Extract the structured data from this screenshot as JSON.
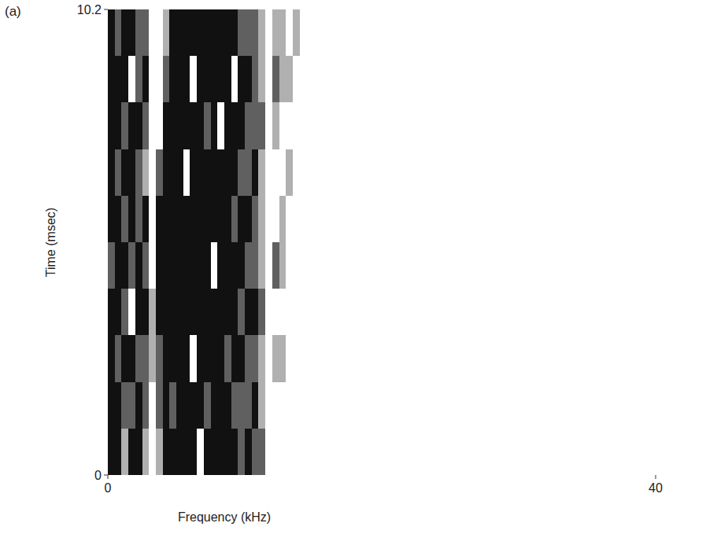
{
  "chart_data": {
    "type": "heatmap",
    "panel_label": "(a)",
    "x_label": "Frequency (kHz)",
    "y_label": "Time (msec)",
    "xlim": [
      0,
      40
    ],
    "ylim": [
      0,
      10.2
    ],
    "xticks": [
      0,
      40
    ],
    "yticks": [
      0,
      10.2
    ],
    "zlim": [
      0,
      3
    ],
    "freq_bins": [
      0,
      0.5,
      1,
      1.5,
      2,
      2.5,
      3,
      3.5,
      4,
      4.5,
      5,
      5.5,
      6,
      6.5,
      7,
      7.5,
      8,
      8.5,
      9,
      9.5,
      10,
      10.5,
      11,
      11.5,
      12,
      12.5,
      13,
      13.5,
      14,
      14.5,
      15
    ],
    "time_bins": [
      0,
      1.02,
      2.04,
      3.06,
      4.08,
      5.1,
      6.12,
      7.14,
      8.16,
      9.18,
      10.2
    ],
    "cells": [
      [
        3,
        3,
        1,
        3,
        3,
        1,
        0,
        1,
        3,
        3,
        3,
        3,
        3,
        0,
        3,
        3,
        3,
        3,
        3,
        2,
        3,
        2,
        2,
        0,
        0,
        0,
        0,
        0,
        0,
        0
      ],
      [
        3,
        3,
        2,
        2,
        3,
        2,
        0,
        2,
        3,
        2,
        3,
        3,
        3,
        3,
        2,
        3,
        3,
        3,
        2,
        2,
        2,
        3,
        1,
        0,
        0,
        0,
        0,
        0,
        0,
        0
      ],
      [
        3,
        2,
        3,
        3,
        2,
        2,
        1,
        2,
        3,
        3,
        3,
        3,
        0,
        3,
        3,
        3,
        3,
        2,
        3,
        3,
        2,
        2,
        1,
        0,
        1,
        1,
        0,
        0,
        0,
        0
      ],
      [
        3,
        3,
        2,
        0,
        3,
        3,
        1,
        3,
        3,
        3,
        3,
        3,
        3,
        3,
        3,
        3,
        3,
        3,
        3,
        2,
        3,
        3,
        2,
        0,
        0,
        0,
        0,
        0,
        0,
        0
      ],
      [
        2,
        3,
        3,
        2,
        3,
        2,
        0,
        3,
        3,
        3,
        3,
        3,
        3,
        3,
        3,
        0,
        3,
        3,
        3,
        3,
        2,
        2,
        1,
        0,
        2,
        1,
        0,
        0,
        0,
        0
      ],
      [
        3,
        3,
        2,
        3,
        2,
        3,
        0,
        3,
        3,
        3,
        3,
        3,
        3,
        3,
        3,
        3,
        3,
        3,
        2,
        3,
        3,
        2,
        1,
        0,
        0,
        1,
        0,
        0,
        0,
        0
      ],
      [
        3,
        2,
        3,
        3,
        2,
        1,
        0,
        2,
        3,
        3,
        3,
        0,
        3,
        3,
        3,
        3,
        3,
        3,
        3,
        2,
        2,
        3,
        1,
        0,
        0,
        0,
        1,
        0,
        0,
        0
      ],
      [
        3,
        3,
        2,
        3,
        3,
        2,
        0,
        0,
        3,
        3,
        3,
        3,
        3,
        3,
        2,
        3,
        0,
        3,
        3,
        3,
        2,
        2,
        2,
        0,
        1,
        0,
        0,
        0,
        0,
        0
      ],
      [
        3,
        3,
        3,
        0,
        2,
        3,
        0,
        0,
        2,
        3,
        3,
        3,
        0,
        3,
        3,
        3,
        3,
        3,
        0,
        3,
        3,
        2,
        1,
        0,
        2,
        1,
        1,
        0,
        0,
        0
      ],
      [
        3,
        2,
        3,
        3,
        2,
        2,
        0,
        0,
        1,
        3,
        3,
        3,
        3,
        3,
        3,
        3,
        3,
        3,
        3,
        2,
        2,
        2,
        1,
        0,
        1,
        1,
        0,
        1,
        0,
        0
      ]
    ],
    "grid": false
  }
}
